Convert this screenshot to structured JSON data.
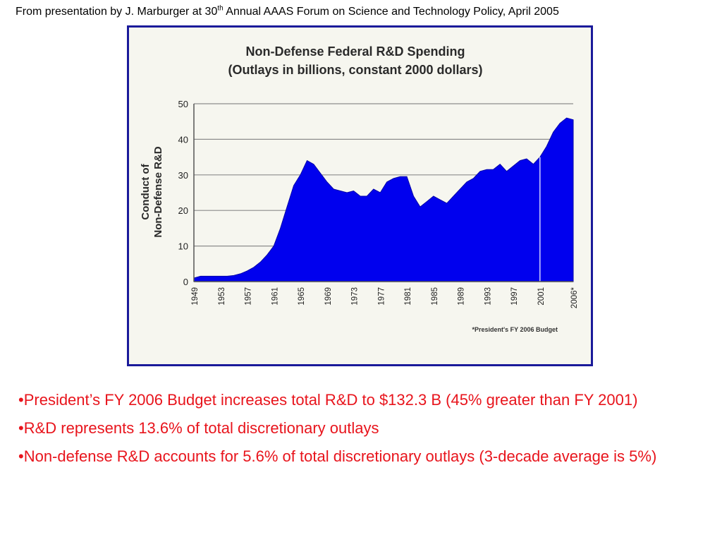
{
  "caption": {
    "prefix": "From presentation by J. Marburger at 30",
    "sup": "th",
    "suffix": " Annual AAAS Forum on Science and Technology Policy, April 2005"
  },
  "chart_data": {
    "type": "area",
    "title": "Non-Defense Federal R&D Spending",
    "subtitle": "(Outlays in billions, constant 2000 dollars)",
    "ylabel_line1": "Conduct of",
    "ylabel_line2": "Non-Defense R&D",
    "ylim": [
      0,
      50
    ],
    "yticks": [
      0,
      10,
      20,
      30,
      40,
      50
    ],
    "xlim": [
      1949,
      2006
    ],
    "xtick_labels": [
      "1949",
      "1953",
      "1957",
      "1961",
      "1965",
      "1969",
      "1973",
      "1977",
      "1981",
      "1985",
      "1989",
      "1993",
      "1997",
      "2001",
      "2006*"
    ],
    "footnote": "*President's FY 2006 Budget",
    "fill_color": "#0000ee",
    "marker_line_year": 2001,
    "x": [
      1949,
      1950,
      1951,
      1952,
      1953,
      1954,
      1955,
      1956,
      1957,
      1958,
      1959,
      1960,
      1961,
      1962,
      1963,
      1964,
      1965,
      1966,
      1967,
      1968,
      1969,
      1970,
      1971,
      1972,
      1973,
      1974,
      1975,
      1976,
      1977,
      1978,
      1979,
      1980,
      1981,
      1982,
      1983,
      1984,
      1985,
      1986,
      1987,
      1988,
      1989,
      1990,
      1991,
      1992,
      1993,
      1994,
      1995,
      1996,
      1997,
      1998,
      1999,
      2000,
      2001,
      2002,
      2003,
      2004,
      2005,
      2006
    ],
    "values": [
      1.0,
      1.5,
      1.5,
      1.5,
      1.5,
      1.5,
      1.7,
      2.2,
      3.0,
      4.0,
      5.5,
      7.5,
      10.0,
      15.0,
      21.0,
      27.0,
      30.0,
      34.0,
      33.0,
      30.5,
      28.0,
      26.0,
      25.5,
      25.0,
      25.5,
      24.0,
      24.0,
      26.0,
      25.0,
      28.0,
      29.0,
      29.5,
      29.5,
      24.0,
      21.0,
      22.5,
      24.0,
      23.0,
      22.0,
      24.0,
      26.0,
      28.0,
      29.0,
      31.0,
      31.5,
      31.5,
      33.0,
      31.0,
      32.5,
      34.0,
      34.5,
      33.0,
      35.0,
      38.0,
      42.0,
      44.5,
      46.0,
      45.5
    ]
  },
  "bullets": [
    "•President’s FY 2006 Budget increases total R&D to $132.3 B (45% greater than FY 2001)",
    "•R&D represents 13.6% of total discretionary outlays",
    "•Non-defense R&D accounts for 5.6% of total discretionary outlays (3-decade average is 5%)"
  ]
}
